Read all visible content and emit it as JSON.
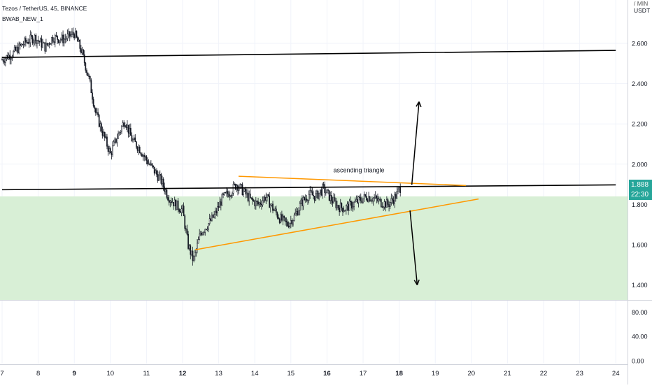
{
  "header": {
    "symbol_line": "Tezos / TetherUS, 45, BINANCE",
    "indicator_line": "BWAB_NEW_1"
  },
  "axis": {
    "currency_top": "/ MIN",
    "currency": "USDT"
  },
  "last_price": {
    "value": "1.888",
    "countdown": "22:30"
  },
  "annotation": {
    "text": "ascending triangle"
  },
  "colors": {
    "candle": "#131722",
    "trendline": "#000000",
    "triangle": "#ff9800",
    "zone": "#d8efd6",
    "badge": "#26a69a",
    "grid": "#f0f3fa"
  },
  "chart_data": {
    "type": "candlestick",
    "main_axis": {
      "ylim": [
        1.32,
        2.81
      ],
      "ticks": [
        "2.600",
        "2.400",
        "2.200",
        "2.000",
        "1.800",
        "1.600",
        "1.400"
      ]
    },
    "sub_axis": {
      "ticks": [
        "80.00",
        "40.00",
        "0.00"
      ]
    },
    "x_ticks": [
      "7",
      "8",
      "9",
      "10",
      "11",
      "12",
      "13",
      "14",
      "15",
      "16",
      "17",
      "18",
      "19",
      "20",
      "21",
      "22",
      "23",
      "24"
    ],
    "x_bold_ticks": [
      "9",
      "12",
      "16",
      "18"
    ],
    "price_path": [
      [
        7.0,
        2.52
      ],
      [
        7.3,
        2.55
      ],
      [
        7.6,
        2.6
      ],
      [
        7.9,
        2.63
      ],
      [
        8.2,
        2.58
      ],
      [
        8.4,
        2.63
      ],
      [
        8.7,
        2.62
      ],
      [
        9.0,
        2.65
      ],
      [
        9.2,
        2.56
      ],
      [
        9.4,
        2.43
      ],
      [
        9.6,
        2.25
      ],
      [
        9.8,
        2.15
      ],
      [
        10.0,
        2.05
      ],
      [
        10.2,
        2.14
      ],
      [
        10.4,
        2.22
      ],
      [
        10.6,
        2.12
      ],
      [
        10.8,
        2.08
      ],
      [
        11.0,
        2.02
      ],
      [
        11.2,
        1.97
      ],
      [
        11.4,
        1.92
      ],
      [
        11.6,
        1.84
      ],
      [
        11.8,
        1.8
      ],
      [
        12.0,
        1.77
      ],
      [
        12.15,
        1.6
      ],
      [
        12.3,
        1.52
      ],
      [
        12.5,
        1.66
      ],
      [
        12.7,
        1.7
      ],
      [
        12.9,
        1.75
      ],
      [
        13.1,
        1.83
      ],
      [
        13.3,
        1.86
      ],
      [
        13.5,
        1.9
      ],
      [
        13.7,
        1.86
      ],
      [
        13.9,
        1.82
      ],
      [
        14.1,
        1.8
      ],
      [
        14.3,
        1.84
      ],
      [
        14.5,
        1.78
      ],
      [
        14.7,
        1.73
      ],
      [
        14.9,
        1.7
      ],
      [
        15.1,
        1.74
      ],
      [
        15.3,
        1.81
      ],
      [
        15.5,
        1.85
      ],
      [
        15.7,
        1.84
      ],
      [
        15.9,
        1.88
      ],
      [
        16.1,
        1.83
      ],
      [
        16.3,
        1.79
      ],
      [
        16.5,
        1.78
      ],
      [
        16.7,
        1.8
      ],
      [
        16.9,
        1.82
      ],
      [
        17.1,
        1.84
      ],
      [
        17.3,
        1.83
      ],
      [
        17.5,
        1.81
      ],
      [
        17.7,
        1.8
      ],
      [
        17.9,
        1.84
      ],
      [
        18.05,
        1.888
      ]
    ],
    "lines": [
      {
        "name": "resistance",
        "x": [
          7.0,
          24.0
        ],
        "y": [
          2.53,
          2.565
        ]
      },
      {
        "name": "neckline",
        "x": [
          7.0,
          24.0
        ],
        "y": [
          1.873,
          1.897
        ]
      }
    ],
    "triangle": {
      "upper": {
        "x": [
          13.55,
          19.85
        ],
        "y": [
          1.94,
          1.894
        ]
      },
      "lower": {
        "x": [
          12.35,
          20.2
        ],
        "y": [
          1.575,
          1.827
        ]
      }
    },
    "zone": {
      "y": [
        1.325,
        1.84
      ]
    },
    "arrows": [
      {
        "name": "breakout-up",
        "from": [
          18.35,
          1.897
        ],
        "to": [
          18.55,
          2.31
        ]
      },
      {
        "name": "breakdown",
        "from": [
          18.3,
          1.77
        ],
        "to": [
          18.5,
          1.4
        ]
      }
    ]
  }
}
